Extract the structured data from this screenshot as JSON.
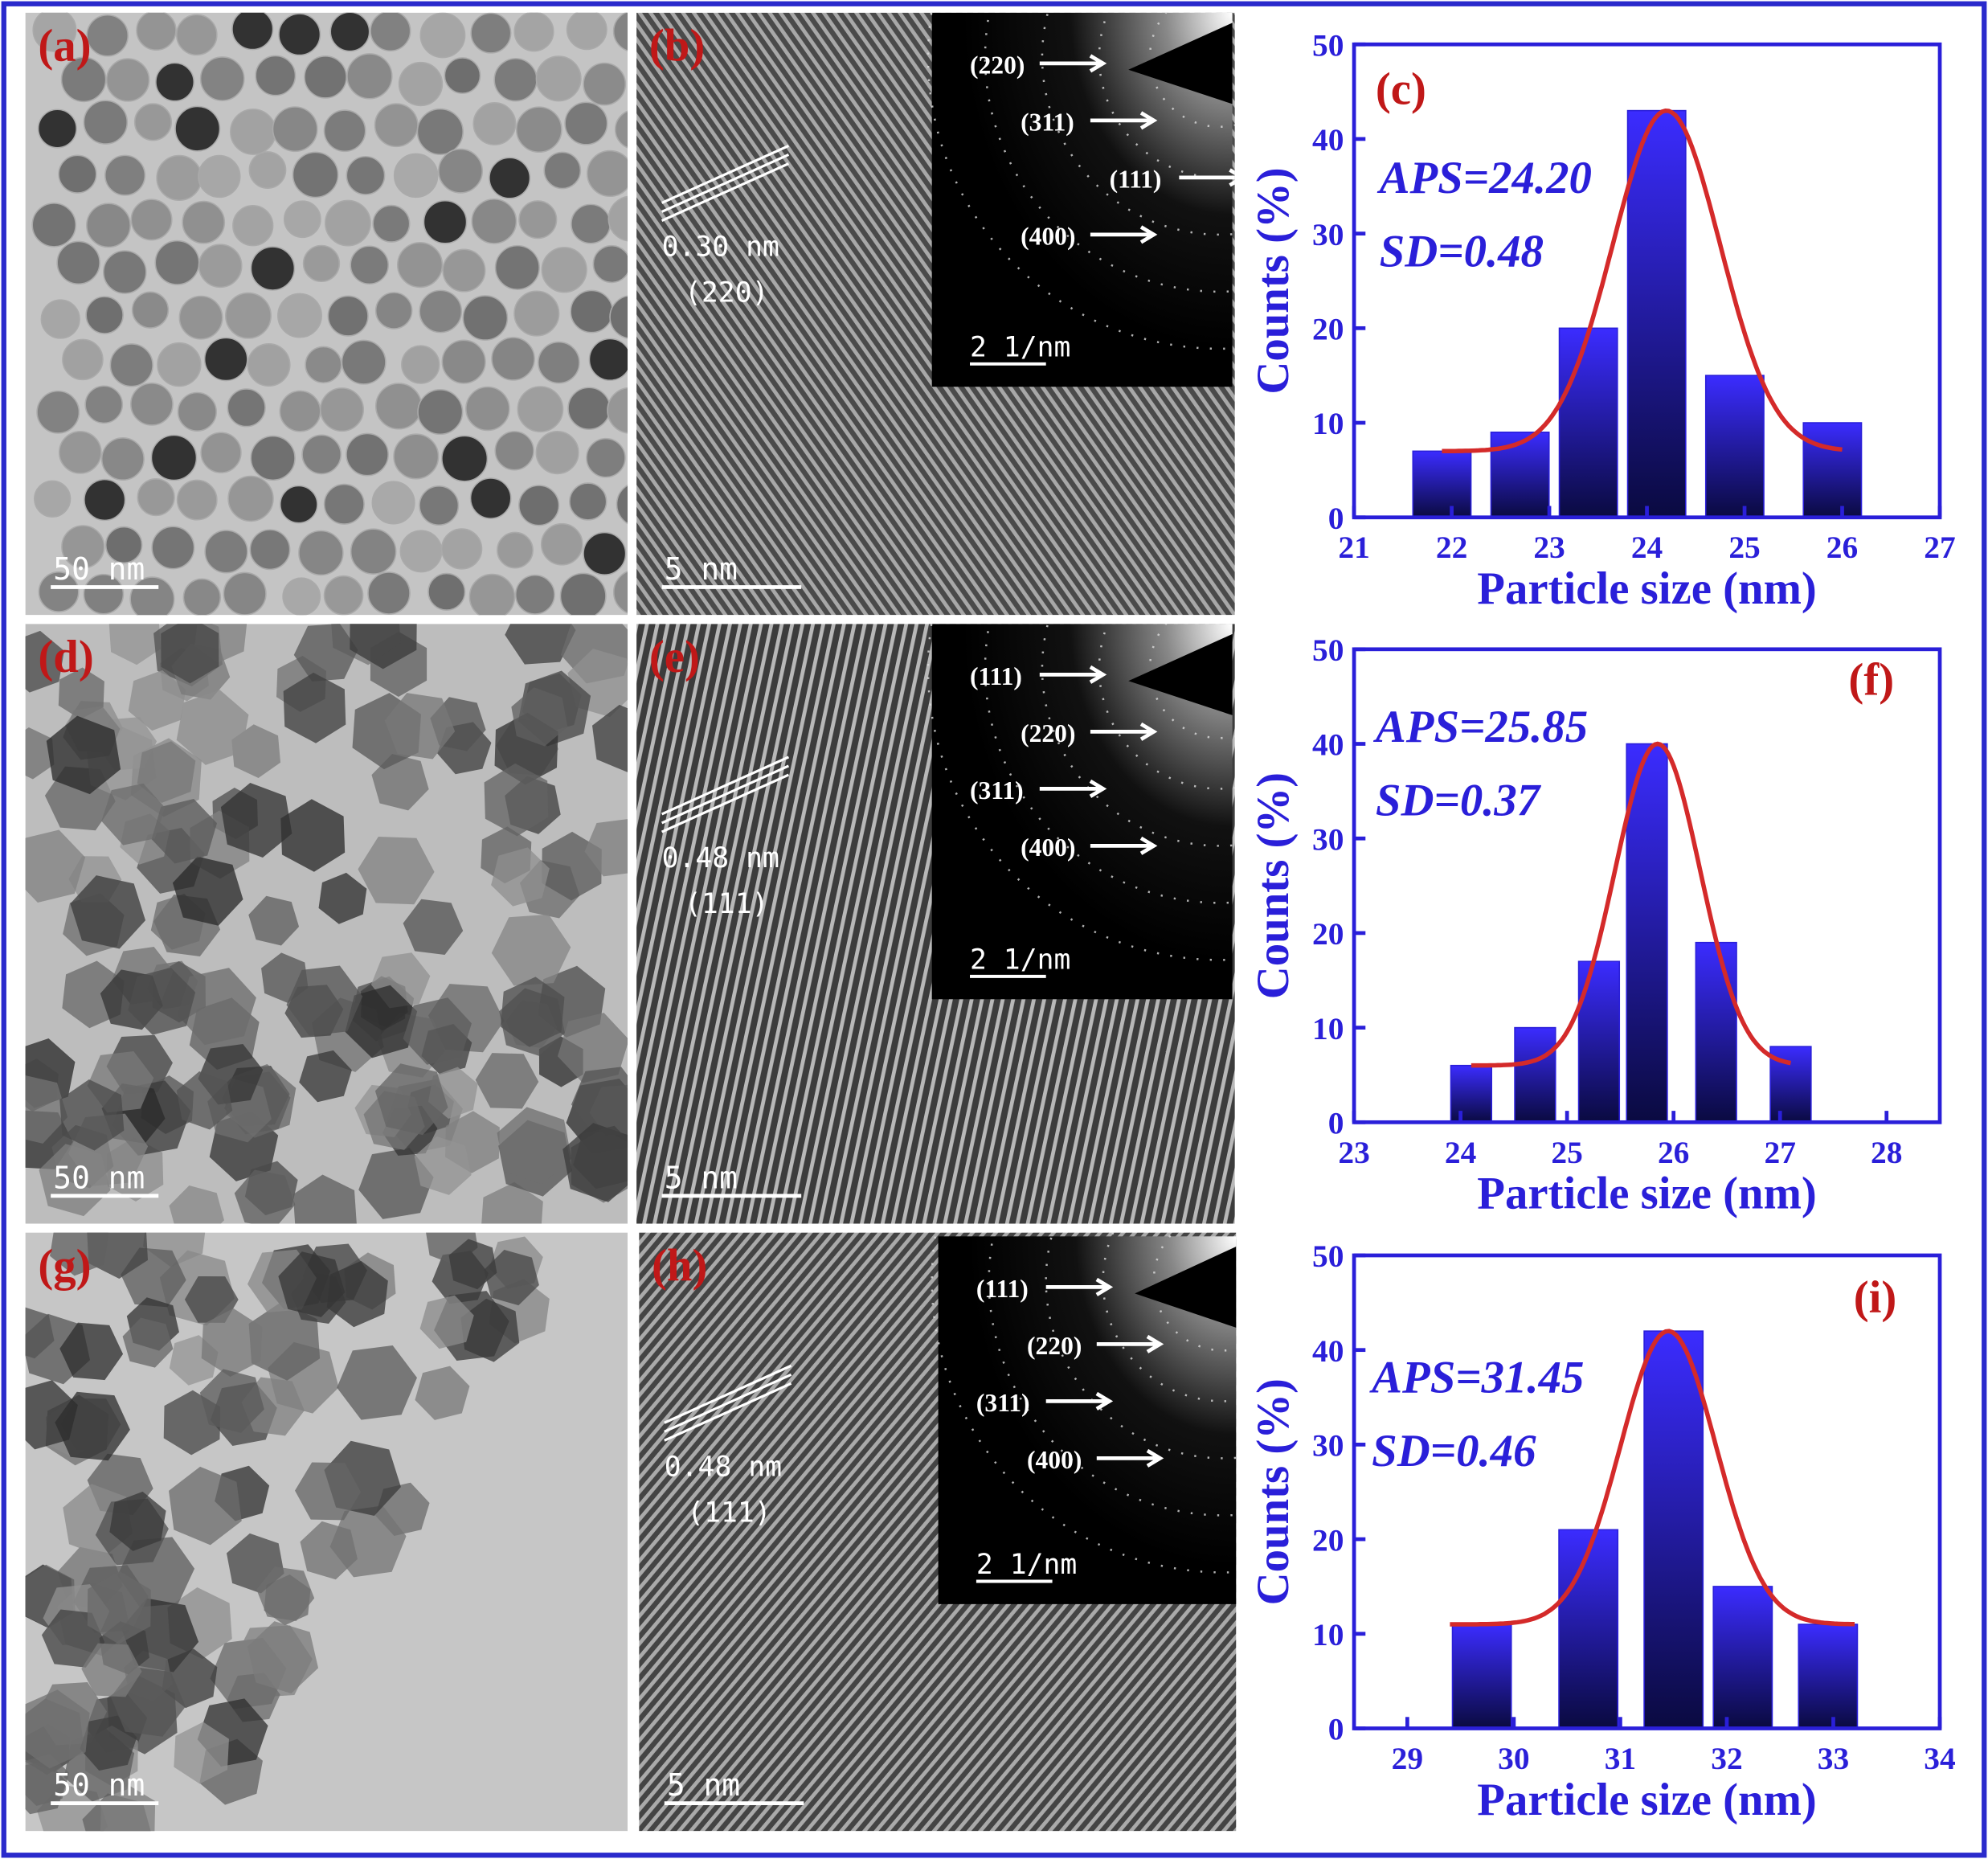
{
  "panels": [
    {
      "label": "(a)",
      "scale_bar": "50 nm"
    },
    {
      "label": "(b)",
      "scale_bar": "5 nm",
      "spacing": "0.30 nm",
      "plane": "(220)",
      "inset_scale_bar": "2 1/nm",
      "rings": [
        "(220)",
        "(311)",
        "(111)",
        "(400)"
      ]
    },
    {
      "label": "(d)",
      "scale_bar": "50 nm"
    },
    {
      "label": "(e)",
      "scale_bar": "5 nm",
      "spacing": "0.48 nm",
      "plane": "(111)",
      "inset_scale_bar": "2 1/nm",
      "rings": [
        "(111)",
        "(220)",
        "(311)",
        "(400)"
      ]
    },
    {
      "label": "(g)",
      "scale_bar": "50 nm"
    },
    {
      "label": "(h)",
      "scale_bar": "5 nm",
      "spacing": "0.48 nm",
      "plane": "(111)",
      "inset_scale_bar": "2 1/nm",
      "rings": [
        "(111)",
        "(220)",
        "(311)",
        "(400)"
      ]
    }
  ],
  "chart_data": [
    {
      "type": "bar",
      "label": "(c)",
      "annotations": [
        "APS=24.20",
        "SD=0.48"
      ],
      "xlabel": "Particle size (nm)",
      "ylabel": "Counts (%)",
      "color": "#2a1fd9",
      "x": [
        21.9,
        22.7,
        23.4,
        24.1,
        24.9,
        25.9
      ],
      "values": [
        7,
        9,
        20,
        43,
        15,
        10
      ],
      "xlim": [
        21,
        27
      ],
      "xticks": [
        21,
        22,
        23,
        24,
        25,
        26,
        27
      ],
      "ylim": [
        0,
        50
      ],
      "yticks": [
        0,
        10,
        20,
        30,
        40,
        50
      ],
      "fit": {
        "type": "gaussian",
        "baseline": 7,
        "peak": 43,
        "center": 24.2,
        "sigma": 0.55,
        "from": 21.9,
        "to": 26,
        "color": "#d42a2a"
      }
    },
    {
      "type": "bar",
      "label": "(f)",
      "annotations": [
        "APS=25.85",
        "SD=0.37"
      ],
      "xlabel": "Particle size (nm)",
      "ylabel": "Counts (%)",
      "color": "#2a1fd9",
      "x": [
        24.1,
        24.7,
        25.3,
        25.75,
        26.4,
        27.1
      ],
      "values": [
        6,
        10,
        17,
        40,
        19,
        8
      ],
      "xlim": [
        23,
        28.5
      ],
      "xticks": [
        23,
        24,
        25,
        26,
        27,
        28
      ],
      "ylim": [
        0,
        50
      ],
      "yticks": [
        0,
        10,
        20,
        30,
        40,
        50
      ],
      "fit": {
        "type": "gaussian",
        "baseline": 6,
        "peak": 40,
        "center": 25.85,
        "sigma": 0.4,
        "from": 24.1,
        "to": 27.1,
        "color": "#d42a2a"
      }
    },
    {
      "type": "bar",
      "label": "(i)",
      "annotations": [
        "APS=31.45",
        "SD=0.46"
      ],
      "xlabel": "Particle size (nm)",
      "ylabel": "Counts (%)",
      "color": "#2a1fd9",
      "x": [
        29.7,
        30.7,
        31.5,
        32.15,
        32.95
      ],
      "values": [
        11,
        21,
        42,
        15,
        11
      ],
      "xlim": [
        28.5,
        34
      ],
      "xticks": [
        29,
        30,
        31,
        32,
        33,
        34
      ],
      "ylim": [
        0,
        50
      ],
      "yticks": [
        0,
        10,
        20,
        30,
        40,
        50
      ],
      "fit": {
        "type": "gaussian",
        "baseline": 11,
        "peak": 42,
        "center": 31.45,
        "sigma": 0.45,
        "from": 29.4,
        "to": 33.2,
        "color": "#d42a2a"
      }
    }
  ]
}
